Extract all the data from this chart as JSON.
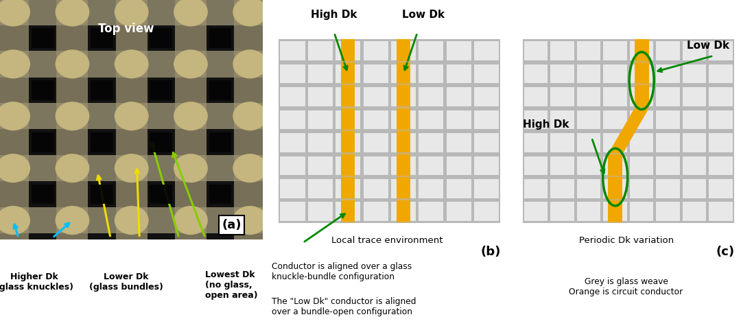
{
  "fig_width": 10.8,
  "fig_height": 4.78,
  "bg_color": "#ffffff",
  "panel_a": {
    "label": "(a)",
    "top_view_text": "Top view",
    "higher_dk_label": "Higher Dk\n(glass knuckles)",
    "lower_dk_label": "Lower Dk\n(glass bundles)",
    "lowest_dk_label": "Lowest Dk\n(no glass,\nopen area)",
    "arrow_cyan_color": "#00bfff",
    "arrow_yellow_color": "#eedd00",
    "arrow_green_color": "#88cc00",
    "photo_dark": "#111111",
    "photo_bundle_h": "#8a8268",
    "photo_bundle_v": "#9a9070",
    "photo_knuckle": "#c8b880",
    "photo_open": "#050505"
  },
  "panel_b": {
    "label": "(b)",
    "grid_color": "#b8b8b8",
    "cell_color": "#e8e8e8",
    "conductor_color": "#f0a800",
    "grid_rows": 8,
    "grid_cols": 8,
    "caption": "Local trace environment",
    "high_dk_label": "High Dk",
    "low_dk_label": "Low Dk",
    "arrow_color": "#008800",
    "text1": "Conductor is aligned over a glass\nknuckle-bundle configuration",
    "text2": "The \"Low Dk\" conductor is aligned\nover a bundle-open configuration"
  },
  "panel_c": {
    "label": "(c)",
    "grid_color": "#b8b8b8",
    "cell_color": "#e8e8e8",
    "conductor_color": "#f0a800",
    "grid_rows": 8,
    "grid_cols": 8,
    "caption": "Periodic Dk variation",
    "high_dk_label": "High Dk",
    "low_dk_label": "Low Dk",
    "arrow_color": "#008800",
    "ellipse_color": "#008800",
    "text1": "Grey is glass weave\nOrange is circuit conductor"
  }
}
